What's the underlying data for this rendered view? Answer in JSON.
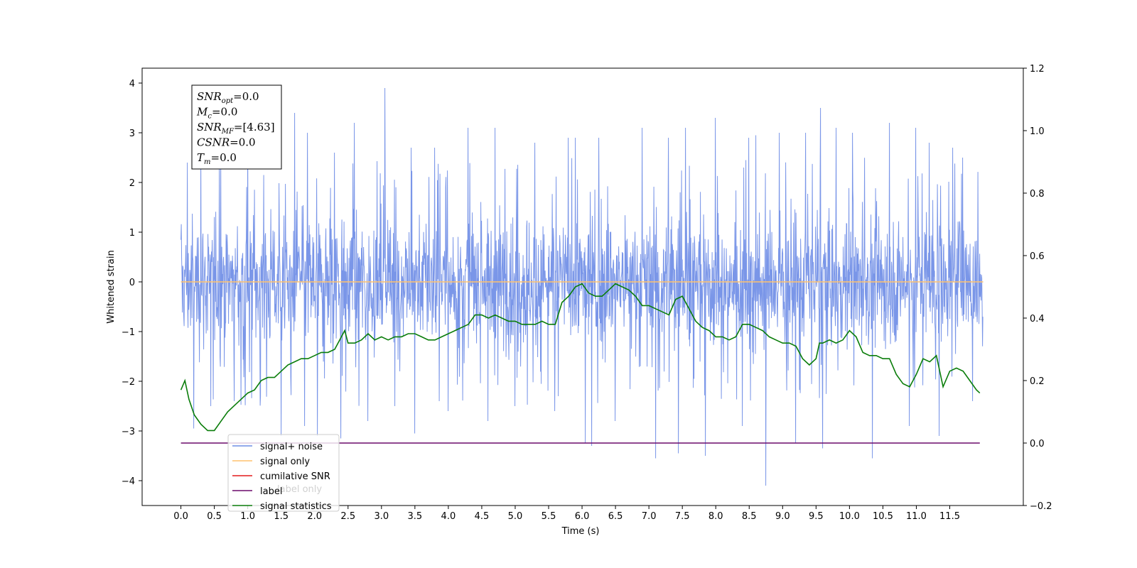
{
  "chart_data": {
    "type": "line",
    "xlabel": "Time (s)",
    "ylabel": "Whitened strain",
    "xlim": [
      -0.58,
      12.6
    ],
    "ylim": [
      -4.5,
      4.3
    ],
    "y2lim": [
      -0.2,
      1.2
    ],
    "x_ticks": [
      0.0,
      0.5,
      1.0,
      1.5,
      2.0,
      2.5,
      3.0,
      3.5,
      4.0,
      4.5,
      5.0,
      5.5,
      6.0,
      6.5,
      7.0,
      7.5,
      8.0,
      8.5,
      9.0,
      9.5,
      10.0,
      10.5,
      11.0,
      11.5
    ],
    "x_tick_labels": [
      "0.0",
      "0.5",
      "1.0",
      "1.5",
      "2.0",
      "2.5",
      "3.0",
      "3.5",
      "4.0",
      "4.5",
      "5.0",
      "5.5",
      "6.0",
      "6.5",
      "7.0",
      "7.5",
      "8.0",
      "8.5",
      "9.0",
      "9.5",
      "10.0",
      "10.5",
      "11.0",
      "11.5"
    ],
    "y_ticks": [
      -4,
      -3,
      -2,
      -1,
      0,
      1,
      2,
      3,
      4
    ],
    "y_tick_labels": [
      "−4",
      "−3",
      "−2",
      "−1",
      "0",
      "1",
      "2",
      "3",
      "4"
    ],
    "y2_ticks": [
      -0.2,
      0.0,
      0.2,
      0.4,
      0.6,
      0.8,
      1.0,
      1.2
    ],
    "y2_tick_labels": [
      "−0.2",
      "0.0",
      "0.2",
      "0.4",
      "0.6",
      "0.8",
      "1.0",
      "1.2"
    ],
    "grid": false,
    "legend_placement": "lower-left",
    "legend": [
      {
        "label": "signal+ noise",
        "color": "#6f8de6"
      },
      {
        "label": "signal only",
        "color": "#ffc26e"
      },
      {
        "label": "cumilative SNR",
        "color": "#e31a1c"
      },
      {
        "label": "label",
        "color": "#6b0a6b"
      },
      {
        "label": "signal statistics",
        "color": "#0a7d0a"
      }
    ],
    "hidden_legend_text": "label only",
    "annotation": {
      "lines": [
        {
          "main": "SNR",
          "sub": "opt",
          "rest": "=0.0"
        },
        {
          "main": "M",
          "sub": "c",
          "rest": "=0.0"
        },
        {
          "main": "SNR",
          "sub": "MF",
          "rest": "=[4.63]"
        },
        {
          "main": "CSNR",
          "sub": "",
          "rest": "=0.0"
        },
        {
          "main": "T",
          "sub": "m",
          "rest": "=0.0"
        }
      ]
    },
    "series": [
      {
        "name": "signal+ noise",
        "color": "#6f8de6",
        "axis": "left",
        "x_range": [
          0.0,
          12.0
        ],
        "band": [
          -1.2,
          1.2
        ],
        "spikes": [
          {
            "x": 0.1,
            "y": 2.4
          },
          {
            "x": 0.2,
            "y": -2.95
          },
          {
            "x": 0.3,
            "y": 2.6
          },
          {
            "x": 0.45,
            "y": -2.5
          },
          {
            "x": 0.6,
            "y": 2.7
          },
          {
            "x": 0.8,
            "y": -2.4
          },
          {
            "x": 1.0,
            "y": 2.9
          },
          {
            "x": 1.2,
            "y": -2.3
          },
          {
            "x": 1.5,
            "y": -3.1
          },
          {
            "x": 1.7,
            "y": 3.4
          },
          {
            "x": 1.85,
            "y": -2.9
          },
          {
            "x": 1.9,
            "y": 3.0
          },
          {
            "x": 2.05,
            "y": -3.1
          },
          {
            "x": 2.3,
            "y": 2.6
          },
          {
            "x": 2.4,
            "y": -3.15
          },
          {
            "x": 2.6,
            "y": 3.2
          },
          {
            "x": 2.8,
            "y": -2.8
          },
          {
            "x": 3.05,
            "y": 3.9
          },
          {
            "x": 3.2,
            "y": -2.5
          },
          {
            "x": 3.45,
            "y": 2.7
          },
          {
            "x": 3.5,
            "y": -3.05
          },
          {
            "x": 3.8,
            "y": 2.7
          },
          {
            "x": 4.0,
            "y": -2.6
          },
          {
            "x": 4.3,
            "y": 3.1
          },
          {
            "x": 4.6,
            "y": -2.8
          },
          {
            "x": 4.7,
            "y": 3.1
          },
          {
            "x": 5.0,
            "y": -2.5
          },
          {
            "x": 5.3,
            "y": 2.8
          },
          {
            "x": 5.6,
            "y": -2.6
          },
          {
            "x": 5.8,
            "y": 2.9
          },
          {
            "x": 5.9,
            "y": 2.9
          },
          {
            "x": 6.05,
            "y": -3.25
          },
          {
            "x": 6.15,
            "y": -3.3
          },
          {
            "x": 6.25,
            "y": 2.9
          },
          {
            "x": 6.5,
            "y": -2.8
          },
          {
            "x": 6.9,
            "y": 3.1
          },
          {
            "x": 7.1,
            "y": -3.55
          },
          {
            "x": 7.3,
            "y": 2.9
          },
          {
            "x": 7.45,
            "y": -3.45
          },
          {
            "x": 7.55,
            "y": 3.1
          },
          {
            "x": 7.85,
            "y": -3.5
          },
          {
            "x": 8.0,
            "y": 3.3
          },
          {
            "x": 8.4,
            "y": -2.9
          },
          {
            "x": 8.5,
            "y": 2.9
          },
          {
            "x": 8.6,
            "y": 2.95
          },
          {
            "x": 8.75,
            "y": -4.1
          },
          {
            "x": 8.95,
            "y": 3.0
          },
          {
            "x": 9.2,
            "y": -3.25
          },
          {
            "x": 9.35,
            "y": 3.0
          },
          {
            "x": 9.57,
            "y": 3.5
          },
          {
            "x": 9.6,
            "y": -3.35
          },
          {
            "x": 9.8,
            "y": 3.1
          },
          {
            "x": 10.05,
            "y": 3.0
          },
          {
            "x": 10.35,
            "y": -3.55
          },
          {
            "x": 10.6,
            "y": 3.2
          },
          {
            "x": 10.9,
            "y": -2.9
          },
          {
            "x": 11.0,
            "y": 3.1
          },
          {
            "x": 11.2,
            "y": 2.8
          },
          {
            "x": 11.35,
            "y": -3.1
          },
          {
            "x": 11.55,
            "y": 2.7
          },
          {
            "x": 11.7,
            "y": 2.5
          },
          {
            "x": 11.85,
            "y": -2.4
          }
        ]
      },
      {
        "name": "signal only",
        "color": "#ffc26e",
        "axis": "left",
        "x": [
          0.0,
          12.0
        ],
        "y": [
          0.0,
          0.0
        ]
      },
      {
        "name": "label",
        "color": "#6b0a6b",
        "axis": "right",
        "x": [
          0.0,
          11.95
        ],
        "y": [
          0.0,
          0.0
        ]
      },
      {
        "name": "signal statistics",
        "color": "#0a7d0a",
        "axis": "right",
        "x": [
          0.0,
          0.06,
          0.12,
          0.2,
          0.3,
          0.4,
          0.5,
          0.6,
          0.7,
          0.8,
          0.9,
          1.0,
          1.1,
          1.2,
          1.3,
          1.4,
          1.5,
          1.6,
          1.7,
          1.8,
          1.9,
          2.0,
          2.1,
          2.2,
          2.3,
          2.4,
          2.45,
          2.5,
          2.6,
          2.7,
          2.8,
          2.9,
          3.0,
          3.1,
          3.2,
          3.3,
          3.4,
          3.5,
          3.6,
          3.7,
          3.8,
          3.9,
          4.0,
          4.1,
          4.2,
          4.3,
          4.4,
          4.5,
          4.6,
          4.7,
          4.8,
          4.9,
          5.0,
          5.1,
          5.2,
          5.3,
          5.4,
          5.5,
          5.6,
          5.7,
          5.8,
          5.9,
          6.0,
          6.1,
          6.2,
          6.3,
          6.4,
          6.5,
          6.6,
          6.7,
          6.8,
          6.9,
          7.0,
          7.1,
          7.2,
          7.3,
          7.4,
          7.5,
          7.6,
          7.7,
          7.8,
          7.9,
          8.0,
          8.1,
          8.2,
          8.3,
          8.4,
          8.5,
          8.6,
          8.7,
          8.8,
          8.9,
          9.0,
          9.1,
          9.2,
          9.3,
          9.4,
          9.5,
          9.55,
          9.6,
          9.7,
          9.8,
          9.9,
          10.0,
          10.1,
          10.2,
          10.3,
          10.4,
          10.5,
          10.6,
          10.7,
          10.8,
          10.9,
          11.0,
          11.1,
          11.2,
          11.3,
          11.4,
          11.5,
          11.6,
          11.7,
          11.8,
          11.9,
          11.95
        ],
        "y": [
          0.17,
          0.2,
          0.14,
          0.09,
          0.06,
          0.04,
          0.04,
          0.07,
          0.1,
          0.12,
          0.14,
          0.16,
          0.17,
          0.2,
          0.21,
          0.21,
          0.23,
          0.25,
          0.26,
          0.27,
          0.27,
          0.28,
          0.29,
          0.29,
          0.3,
          0.34,
          0.36,
          0.32,
          0.32,
          0.33,
          0.35,
          0.33,
          0.34,
          0.33,
          0.34,
          0.34,
          0.35,
          0.35,
          0.34,
          0.33,
          0.33,
          0.34,
          0.35,
          0.36,
          0.37,
          0.38,
          0.41,
          0.41,
          0.4,
          0.41,
          0.4,
          0.39,
          0.39,
          0.38,
          0.38,
          0.38,
          0.39,
          0.38,
          0.38,
          0.45,
          0.47,
          0.5,
          0.51,
          0.48,
          0.47,
          0.47,
          0.49,
          0.51,
          0.5,
          0.49,
          0.47,
          0.44,
          0.44,
          0.43,
          0.42,
          0.41,
          0.46,
          0.47,
          0.43,
          0.39,
          0.37,
          0.36,
          0.34,
          0.34,
          0.33,
          0.34,
          0.38,
          0.38,
          0.37,
          0.36,
          0.34,
          0.33,
          0.32,
          0.32,
          0.31,
          0.27,
          0.25,
          0.27,
          0.32,
          0.32,
          0.33,
          0.32,
          0.33,
          0.36,
          0.34,
          0.29,
          0.28,
          0.28,
          0.27,
          0.27,
          0.22,
          0.19,
          0.18,
          0.22,
          0.27,
          0.26,
          0.28,
          0.18,
          0.23,
          0.24,
          0.23,
          0.2,
          0.17,
          0.16
        ]
      }
    ]
  }
}
